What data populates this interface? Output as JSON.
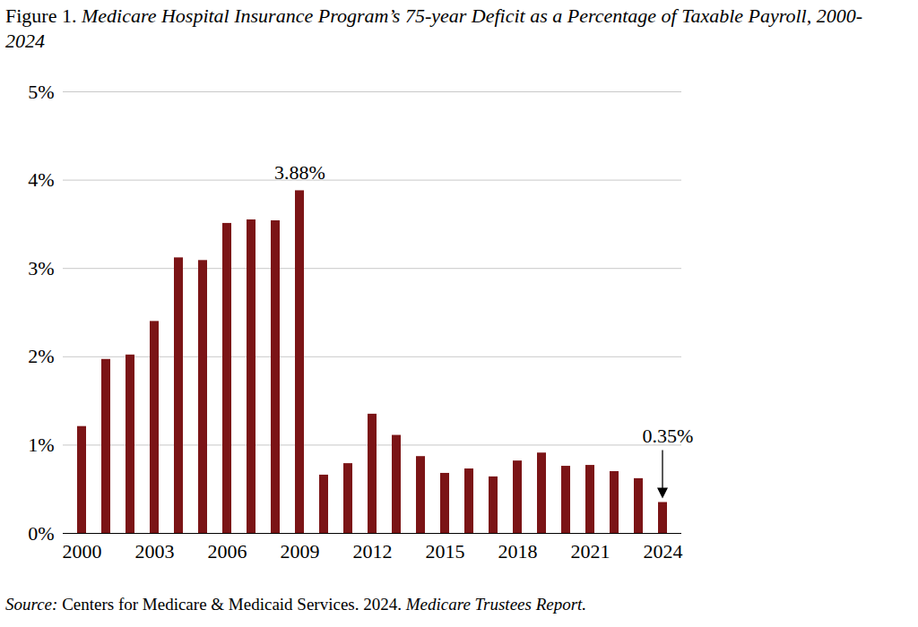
{
  "chart_data": {
    "type": "bar",
    "title": "Figure 1. Medicare Hospital Insurance Program’s 75-year Deficit as a Percentage of Taxable Payroll, 2000-2024",
    "caption": "Source: Centers for Medicare & Medicaid Services. 2024. Medicare Trustees Report.",
    "categories": [
      "2000",
      null,
      null,
      "2003",
      null,
      null,
      "2006",
      null,
      null,
      "2009",
      null,
      null,
      "2012",
      null,
      null,
      "2015",
      null,
      null,
      "2018",
      null,
      null,
      "2021",
      null,
      null,
      "2024"
    ],
    "values": [
      1.21,
      1.97,
      2.02,
      2.4,
      3.12,
      3.09,
      3.51,
      3.55,
      3.54,
      3.88,
      0.66,
      0.79,
      1.35,
      1.11,
      0.87,
      0.68,
      0.73,
      0.64,
      0.82,
      0.91,
      0.76,
      0.77,
      0.7,
      0.62,
      0.35
    ],
    "color": "#7b1416",
    "ylim": [
      0,
      5
    ],
    "yticks": [
      {
        "value": 0,
        "label": "0%"
      },
      {
        "value": 1,
        "label": "1%"
      },
      {
        "value": 2,
        "label": "2%"
      },
      {
        "value": 3,
        "label": "3%"
      },
      {
        "value": 4,
        "label": "4%"
      },
      {
        "value": 5,
        "label": "5%"
      }
    ],
    "grid": true,
    "annotations": [
      {
        "text": "3.88%",
        "value": 3.88,
        "marker": "none"
      },
      {
        "text": "0.35%",
        "value": 0.35,
        "marker": "arrow"
      }
    ]
  }
}
